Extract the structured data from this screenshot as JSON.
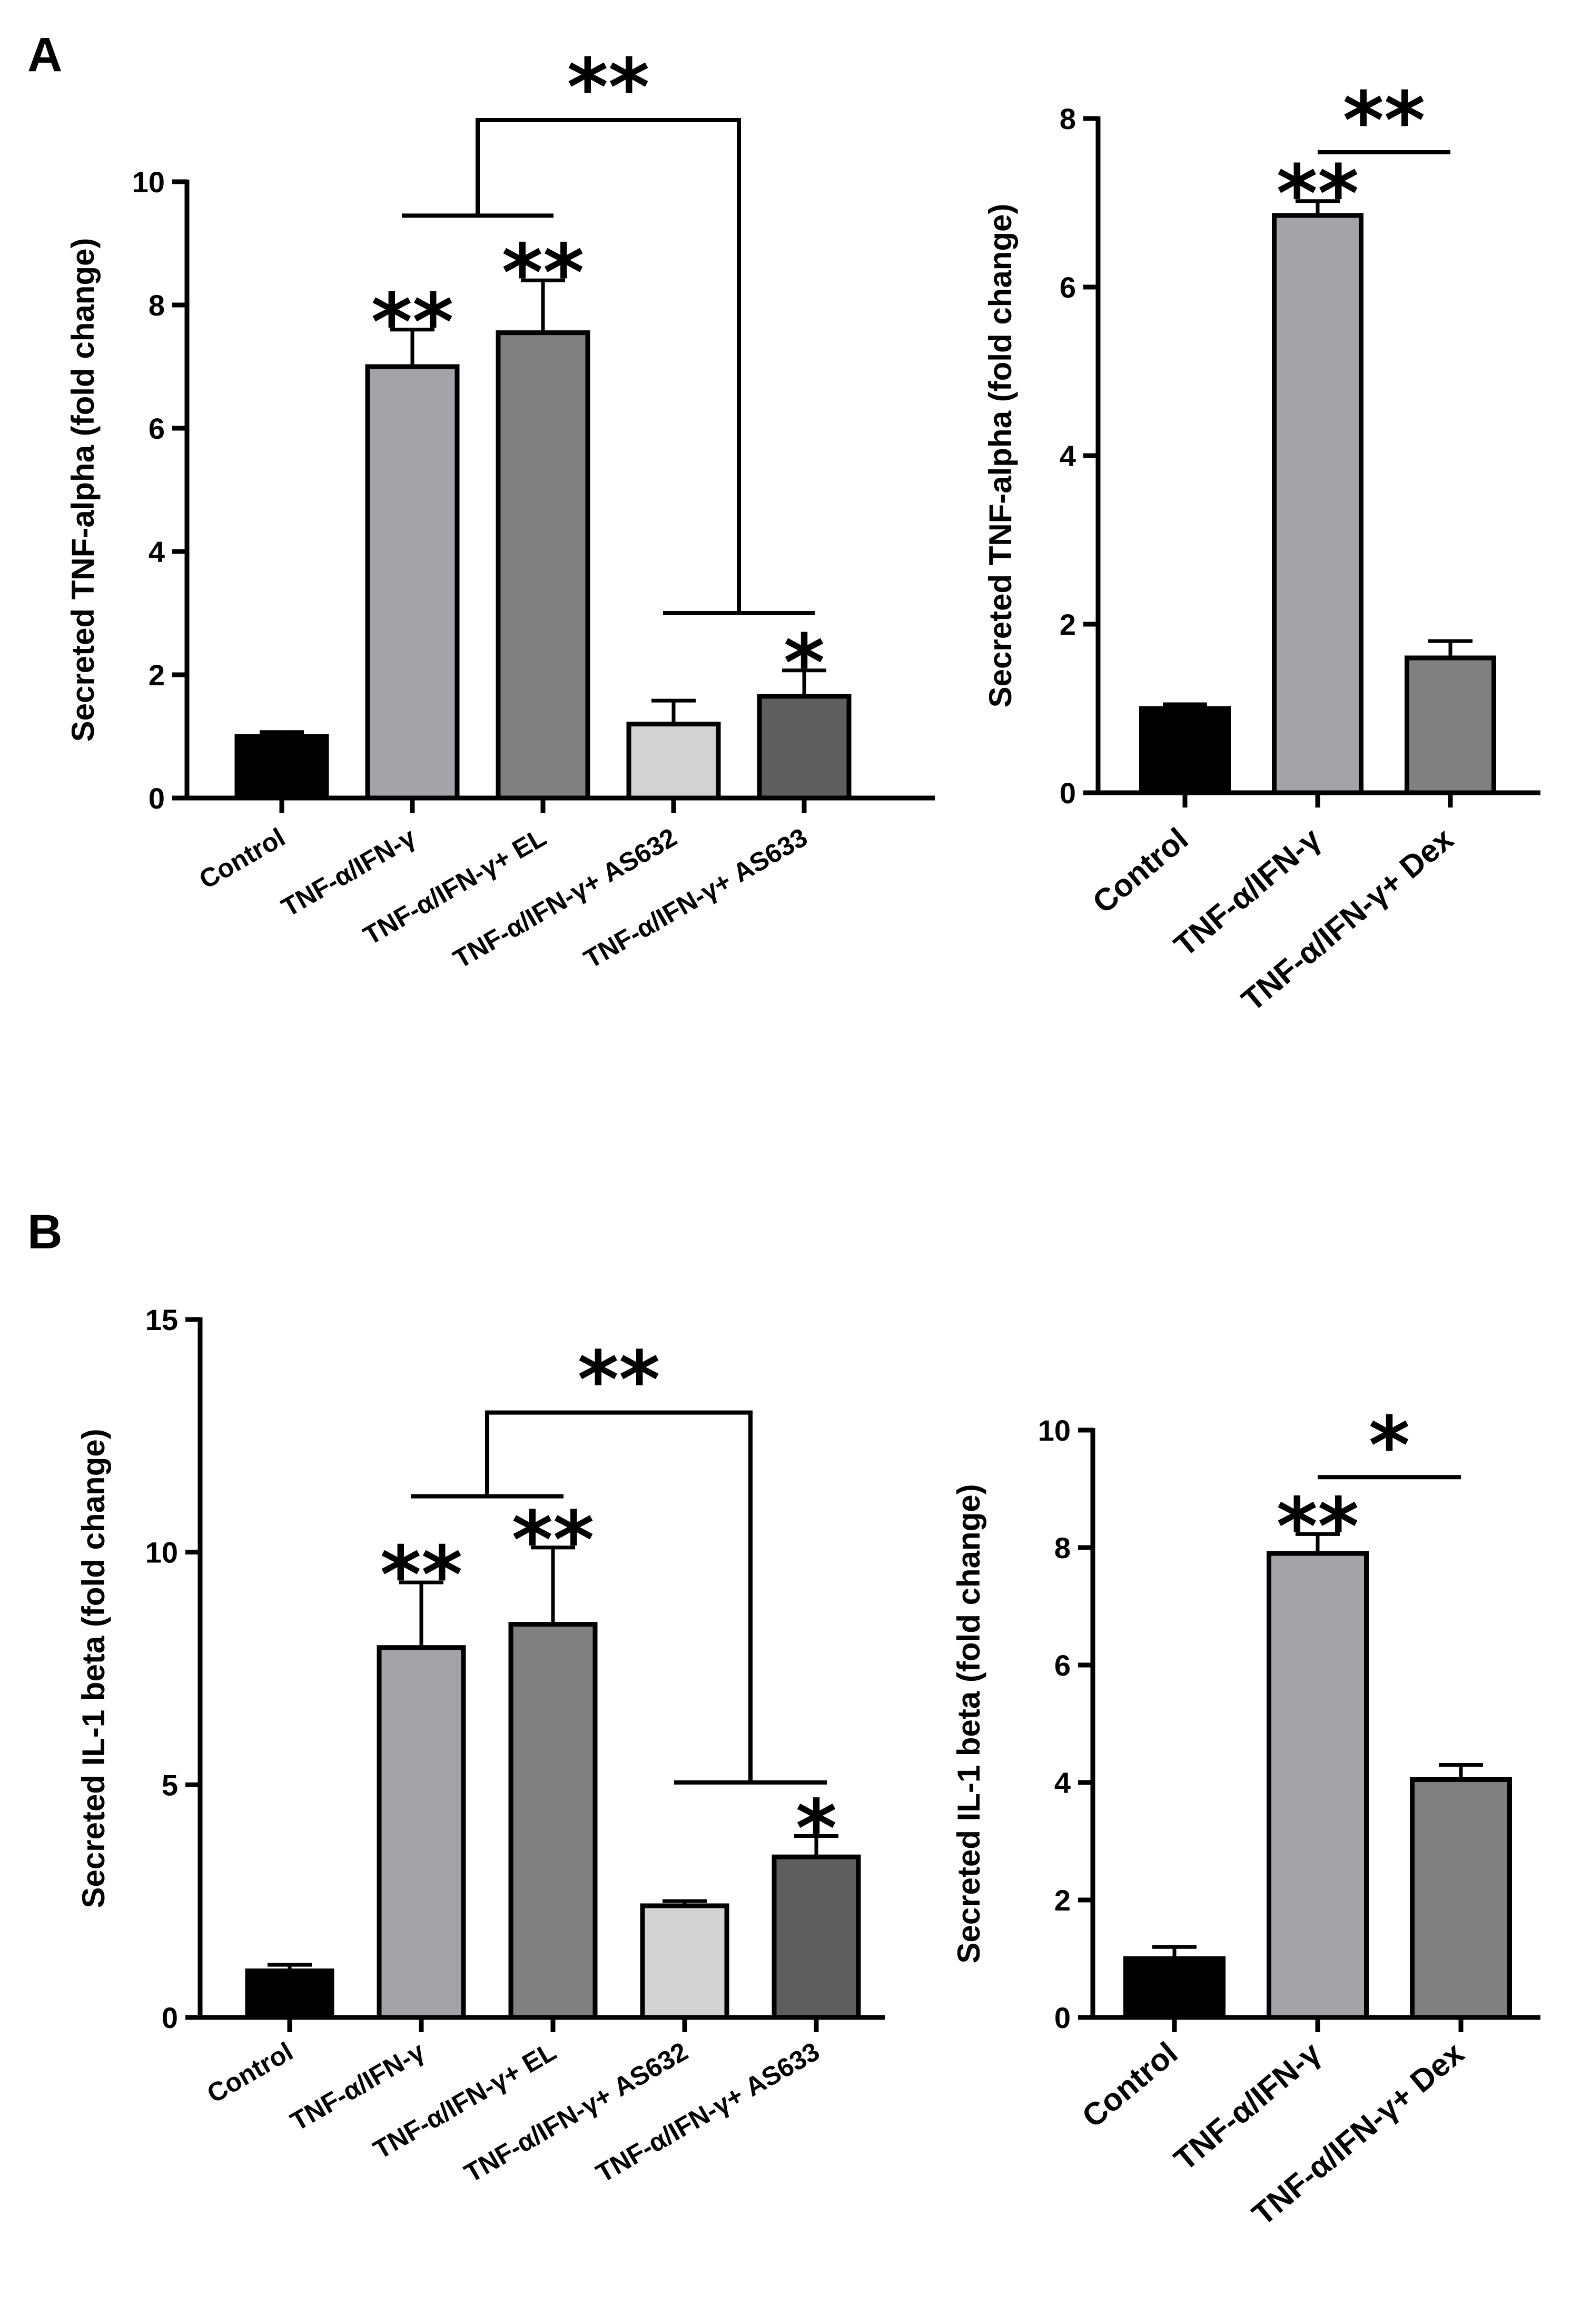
{
  "panel_letters": [
    "A",
    "B"
  ],
  "chart_data": [
    {
      "type": "bar",
      "panel": "A",
      "ylabel": "Secreted TNF-alpha (fold change)",
      "ylim": [
        0,
        10
      ],
      "yticks": [
        0,
        2,
        4,
        6,
        8,
        10
      ],
      "categories": [
        "Control",
        "TNF-α/IFN-γ",
        "TNF-α/IFN-γ+ EL",
        "TNF-α/IFN-γ+ AS632",
        "TNF-α/IFN-γ+ AS633"
      ],
      "values": [
        1.0,
        7.0,
        7.55,
        1.2,
        1.65
      ],
      "errors": [
        0.07,
        0.6,
        0.85,
        0.38,
        0.42
      ],
      "colors": [
        "#000000",
        "#a3a3a8",
        "#808080",
        "#d3d3d3",
        "#5e5e5e"
      ],
      "significance": [
        "",
        "**",
        "**",
        "",
        "*"
      ],
      "brackets": [
        {
          "label": "**",
          "group_a": [
            1,
            2
          ],
          "group_b": [
            3,
            4
          ],
          "y_a": 9.45,
          "y_b": 3.0,
          "y_top": 11.0
        }
      ]
    },
    {
      "type": "bar",
      "panel": "A",
      "ylabel": "Secreted TNF-alpha (fold change)",
      "ylim": [
        0,
        8
      ],
      "yticks": [
        0,
        2,
        4,
        6,
        8
      ],
      "categories": [
        "Control",
        "TNF-α/IFN-γ",
        "TNF-α/IFN-γ+ Dex"
      ],
      "values": [
        1.0,
        6.85,
        1.6
      ],
      "errors": [
        0.05,
        0.17,
        0.2
      ],
      "colors": [
        "#000000",
        "#a3a3a8",
        "#808080"
      ],
      "significance": [
        "",
        "**",
        ""
      ],
      "brackets": [
        {
          "label": "**",
          "from": 1,
          "to": 2,
          "y": 7.6
        }
      ]
    },
    {
      "type": "bar",
      "panel": "B",
      "ylabel": "Secreted IL-1 beta (fold change)",
      "ylim": [
        0,
        15
      ],
      "yticks": [
        0,
        5,
        10,
        15
      ],
      "categories": [
        "Control",
        "TNF-α/IFN-γ",
        "TNF-α/IFN-γ+ EL",
        "TNF-α/IFN-γ+ AS632",
        "TNF-α/IFN-γ+ AS633"
      ],
      "values": [
        1.0,
        7.95,
        8.45,
        2.4,
        3.45
      ],
      "errors": [
        0.13,
        1.4,
        1.65,
        0.1,
        0.45
      ],
      "colors": [
        "#000000",
        "#a3a3a8",
        "#808080",
        "#d3d3d3",
        "#5e5e5e"
      ],
      "significance": [
        "",
        "**",
        "**",
        "",
        "*"
      ],
      "brackets": [
        {
          "label": "**",
          "group_a": [
            1,
            2
          ],
          "group_b": [
            3,
            4
          ],
          "y_a": 11.2,
          "y_b": 5.05,
          "y_top": 13.0
        }
      ]
    },
    {
      "type": "bar",
      "panel": "B",
      "ylabel": "Secreted IL-1 beta (fold change)",
      "ylim": [
        0,
        10
      ],
      "yticks": [
        0,
        2,
        4,
        6,
        8,
        10
      ],
      "categories": [
        "Control",
        "TNF-α/IFN-γ",
        "TNF-α/IFN-γ+ Dex"
      ],
      "values": [
        1.0,
        7.9,
        4.05
      ],
      "errors": [
        0.2,
        0.33,
        0.25
      ],
      "colors": [
        "#000000",
        "#a3a3a8",
        "#808080"
      ],
      "significance": [
        "",
        "**",
        ""
      ],
      "brackets": [
        {
          "label": "*",
          "from": 1,
          "to": 2,
          "y": 9.2
        }
      ]
    }
  ]
}
